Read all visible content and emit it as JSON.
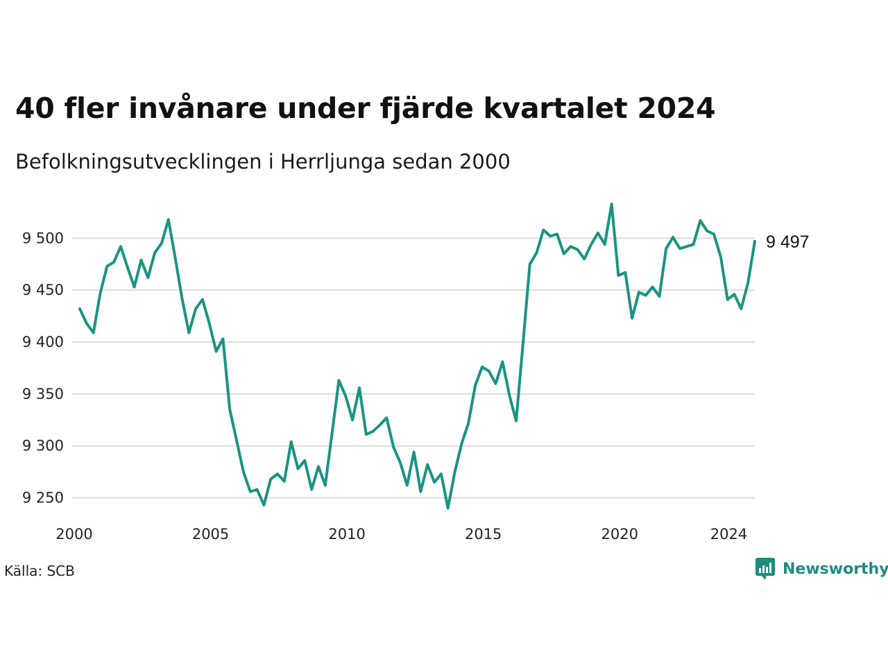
{
  "header": {
    "title": "40 fler invånare under fjärde kvartalet 2024",
    "subtitle": "Befolkningsutvecklingen i Herrljunga sedan 2000"
  },
  "footer": {
    "source": "Källa: SCB",
    "brand": "Newsworthy",
    "brand_icon": "bar-chart-speech-bubble-icon"
  },
  "colors": {
    "line": "#1a9383",
    "grid": "#dcdcdc",
    "brand": "#1e8b7d"
  },
  "chart_data": {
    "type": "line",
    "title": "40 fler invånare under fjärde kvartalet 2024",
    "subtitle": "Befolkningsutvecklingen i Herrljunga sedan 2000",
    "x_ticks": [
      "2000",
      "2005",
      "2010",
      "2015",
      "2020",
      "2024"
    ],
    "y_ticks": [
      "9 250",
      "9 300",
      "9 350",
      "9 400",
      "9 450",
      "9 500"
    ],
    "ylim": [
      9235,
      9545
    ],
    "xlim": [
      "2000-Q1",
      "2024-Q4"
    ],
    "grid": "horizontal",
    "last_label": "9 497",
    "series": [
      {
        "frequency": "quarterly",
        "start": "2000-Q1",
        "values": [
          9432,
          9418,
          9409,
          9447,
          9473,
          9477,
          9492,
          9472,
          9453,
          9479,
          9462,
          9486,
          9495,
          9518,
          9481,
          9442,
          9409,
          9432,
          9441,
          9418,
          9391,
          9403,
          9335,
          9305,
          9275,
          9256,
          9258,
          9243,
          9268,
          9273,
          9266,
          9304,
          9278,
          9286,
          9258,
          9280,
          9262,
          9312,
          9363,
          9348,
          9325,
          9356,
          9311,
          9314,
          9320,
          9327,
          9299,
          9284,
          9262,
          9294,
          9256,
          9282,
          9265,
          9273,
          9240,
          9275,
          9302,
          9322,
          9358,
          9376,
          9372,
          9360,
          9381,
          9349,
          9324,
          9398,
          9475,
          9486,
          9508,
          9502,
          9504,
          9485,
          9492,
          9489,
          9480,
          9494,
          9505,
          9494,
          9533,
          9464,
          9467,
          9423,
          9448,
          9445,
          9453,
          9444,
          9490,
          9501,
          9490,
          9492,
          9494,
          9517,
          9507,
          9504,
          9482,
          9441,
          9446,
          9432,
          9457,
          9497
        ]
      }
    ]
  }
}
